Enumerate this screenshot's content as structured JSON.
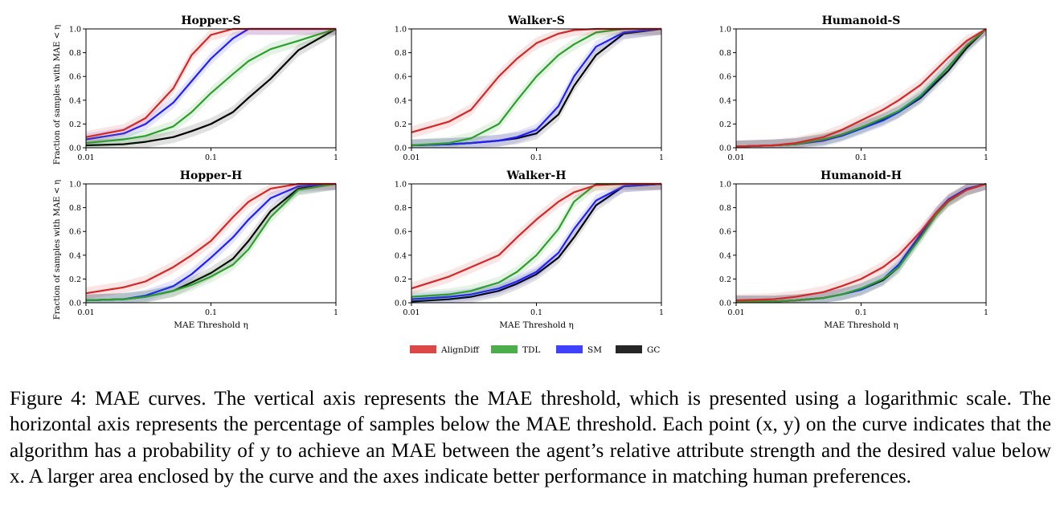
{
  "figure": {
    "x_axis_label": "MAE Threshold η",
    "y_axis_label": "Fraction of samples with MAE < η",
    "legend": [
      {
        "label": "AlignDiff",
        "color": "#d62728"
      },
      {
        "label": "TDL",
        "color": "#2ca02c"
      },
      {
        "label": "SM",
        "color": "#1f1fff"
      },
      {
        "label": "GC",
        "color": "#000000"
      }
    ],
    "caption": "Figure 4: MAE curves. The vertical axis represents the MAE threshold, which is presented using a logarithmic scale. The horizontal axis represents the percentage of samples below the MAE threshold. Each point (x, y) on the curve indicates that the algorithm has a probability of y to achieve an MAE between the agent’s relative attribute strength and the desired value below x. A larger area enclosed by the curve and the axes indicate better performance in matching human preferences."
  },
  "chart_data": [
    {
      "type": "line",
      "title": "Hopper-S",
      "xscale": "log",
      "xlim": [
        0.01,
        1
      ],
      "ylim": [
        0,
        1
      ],
      "xticks": [
        "0.01",
        "0.1",
        "1"
      ],
      "yticks": [
        "0.0",
        "0.2",
        "0.4",
        "0.6",
        "0.8",
        "1.0"
      ],
      "x": [
        0.01,
        0.02,
        0.03,
        0.05,
        0.07,
        0.1,
        0.15,
        0.2,
        0.3,
        0.5,
        1.0
      ],
      "series": [
        {
          "name": "AlignDiff",
          "values": [
            0.09,
            0.15,
            0.25,
            0.5,
            0.78,
            0.95,
            1.0,
            1.0,
            1.0,
            1.0,
            1.0
          ]
        },
        {
          "name": "TDL",
          "values": [
            0.04,
            0.07,
            0.1,
            0.18,
            0.3,
            0.46,
            0.62,
            0.73,
            0.83,
            0.9,
            1.0
          ]
        },
        {
          "name": "SM",
          "values": [
            0.07,
            0.12,
            0.2,
            0.38,
            0.56,
            0.75,
            0.92,
            1.0,
            1.0,
            1.0,
            1.0
          ]
        },
        {
          "name": "GC",
          "values": [
            0.02,
            0.03,
            0.05,
            0.09,
            0.14,
            0.2,
            0.3,
            0.42,
            0.58,
            0.82,
            1.0
          ]
        }
      ]
    },
    {
      "type": "line",
      "title": "Walker-S",
      "xscale": "log",
      "xlim": [
        0.01,
        1
      ],
      "ylim": [
        0,
        1
      ],
      "xticks": [
        "0.01",
        "0.1",
        "1"
      ],
      "yticks": [
        "0.0",
        "0.2",
        "0.4",
        "0.6",
        "0.8",
        "1.0"
      ],
      "x": [
        0.01,
        0.02,
        0.03,
        0.05,
        0.07,
        0.1,
        0.15,
        0.2,
        0.3,
        0.5,
        1.0
      ],
      "series": [
        {
          "name": "AlignDiff",
          "values": [
            0.13,
            0.22,
            0.32,
            0.6,
            0.75,
            0.88,
            0.96,
            0.99,
            1.0,
            1.0,
            1.0
          ]
        },
        {
          "name": "TDL",
          "values": [
            0.02,
            0.04,
            0.08,
            0.2,
            0.4,
            0.6,
            0.78,
            0.87,
            0.97,
            1.0,
            1.0
          ]
        },
        {
          "name": "SM",
          "values": [
            0.02,
            0.03,
            0.04,
            0.06,
            0.09,
            0.15,
            0.35,
            0.6,
            0.85,
            0.97,
            1.0
          ]
        },
        {
          "name": "GC",
          "values": [
            0.02,
            0.03,
            0.04,
            0.06,
            0.08,
            0.12,
            0.28,
            0.52,
            0.78,
            0.96,
            1.0
          ]
        }
      ]
    },
    {
      "type": "line",
      "title": "Humanoid-S",
      "xscale": "log",
      "xlim": [
        0.01,
        1
      ],
      "ylim": [
        0,
        1
      ],
      "xticks": [
        "0.01",
        "0.1",
        "1"
      ],
      "yticks": [
        "0.0",
        "0.2",
        "0.4",
        "0.6",
        "0.8",
        "1.0"
      ],
      "x": [
        0.01,
        0.02,
        0.03,
        0.05,
        0.07,
        0.1,
        0.15,
        0.2,
        0.3,
        0.5,
        0.7,
        1.0
      ],
      "series": [
        {
          "name": "AlignDiff",
          "values": [
            0.01,
            0.02,
            0.04,
            0.09,
            0.15,
            0.23,
            0.32,
            0.4,
            0.53,
            0.76,
            0.9,
            1.0
          ]
        },
        {
          "name": "TDL",
          "values": [
            0.01,
            0.02,
            0.03,
            0.07,
            0.11,
            0.17,
            0.25,
            0.31,
            0.44,
            0.68,
            0.86,
            1.0
          ]
        },
        {
          "name": "SM",
          "values": [
            0.01,
            0.02,
            0.03,
            0.06,
            0.1,
            0.16,
            0.23,
            0.3,
            0.43,
            0.68,
            0.86,
            1.0
          ]
        },
        {
          "name": "GC",
          "values": [
            0.01,
            0.02,
            0.03,
            0.07,
            0.11,
            0.17,
            0.24,
            0.3,
            0.42,
            0.65,
            0.84,
            1.0
          ]
        }
      ]
    },
    {
      "type": "line",
      "title": "Hopper-H",
      "xscale": "log",
      "xlim": [
        0.01,
        1
      ],
      "ylim": [
        0,
        1
      ],
      "xticks": [
        "0.01",
        "0.1",
        "1"
      ],
      "yticks": [
        "0.0",
        "0.2",
        "0.4",
        "0.6",
        "0.8",
        "1.0"
      ],
      "x": [
        0.01,
        0.02,
        0.03,
        0.05,
        0.07,
        0.1,
        0.15,
        0.2,
        0.3,
        0.5,
        1.0
      ],
      "series": [
        {
          "name": "AlignDiff",
          "values": [
            0.08,
            0.13,
            0.18,
            0.3,
            0.4,
            0.52,
            0.72,
            0.85,
            0.96,
            1.0,
            1.0
          ]
        },
        {
          "name": "TDL",
          "values": [
            0.02,
            0.03,
            0.05,
            0.1,
            0.15,
            0.22,
            0.32,
            0.45,
            0.72,
            0.95,
            1.0
          ]
        },
        {
          "name": "SM",
          "values": [
            0.02,
            0.03,
            0.06,
            0.14,
            0.24,
            0.38,
            0.55,
            0.7,
            0.88,
            0.98,
            1.0
          ]
        },
        {
          "name": "GC",
          "values": [
            0.02,
            0.03,
            0.05,
            0.1,
            0.17,
            0.25,
            0.37,
            0.52,
            0.77,
            0.96,
            1.0
          ]
        }
      ]
    },
    {
      "type": "line",
      "title": "Walker-H",
      "xscale": "log",
      "xlim": [
        0.01,
        1
      ],
      "ylim": [
        0,
        1
      ],
      "xticks": [
        "0.01",
        "0.1",
        "1"
      ],
      "yticks": [
        "0.0",
        "0.2",
        "0.4",
        "0.6",
        "0.8",
        "1.0"
      ],
      "x": [
        0.01,
        0.02,
        0.03,
        0.05,
        0.07,
        0.1,
        0.15,
        0.2,
        0.3,
        0.5,
        1.0
      ],
      "series": [
        {
          "name": "AlignDiff",
          "values": [
            0.12,
            0.22,
            0.3,
            0.4,
            0.55,
            0.7,
            0.85,
            0.93,
            0.99,
            1.0,
            1.0
          ]
        },
        {
          "name": "TDL",
          "values": [
            0.05,
            0.07,
            0.1,
            0.17,
            0.26,
            0.4,
            0.62,
            0.85,
            1.0,
            1.0,
            1.0
          ]
        },
        {
          "name": "SM",
          "values": [
            0.03,
            0.05,
            0.07,
            0.12,
            0.18,
            0.26,
            0.42,
            0.62,
            0.86,
            0.98,
            1.0
          ]
        },
        {
          "name": "GC",
          "values": [
            0.01,
            0.03,
            0.05,
            0.1,
            0.16,
            0.24,
            0.38,
            0.55,
            0.82,
            0.98,
            1.0
          ]
        }
      ]
    },
    {
      "type": "line",
      "title": "Humanoid-H",
      "xscale": "log",
      "xlim": [
        0.01,
        1
      ],
      "ylim": [
        0,
        1
      ],
      "xticks": [
        "0.01",
        "0.1",
        "1"
      ],
      "yticks": [
        "0.0",
        "0.2",
        "0.4",
        "0.6",
        "0.8",
        "1.0"
      ],
      "x": [
        0.01,
        0.02,
        0.03,
        0.05,
        0.07,
        0.1,
        0.15,
        0.2,
        0.3,
        0.4,
        0.5,
        0.7,
        1.0
      ],
      "series": [
        {
          "name": "AlignDiff",
          "values": [
            0.02,
            0.03,
            0.05,
            0.09,
            0.14,
            0.2,
            0.3,
            0.4,
            0.6,
            0.76,
            0.86,
            0.95,
            1.0
          ]
        },
        {
          "name": "TDL",
          "values": [
            0.01,
            0.01,
            0.02,
            0.04,
            0.07,
            0.12,
            0.2,
            0.3,
            0.55,
            0.74,
            0.85,
            0.95,
            1.0
          ]
        },
        {
          "name": "SM",
          "values": [
            0.01,
            0.01,
            0.02,
            0.04,
            0.07,
            0.11,
            0.2,
            0.32,
            0.58,
            0.76,
            0.87,
            0.96,
            1.0
          ]
        },
        {
          "name": "GC",
          "values": [
            0.01,
            0.01,
            0.02,
            0.04,
            0.07,
            0.11,
            0.19,
            0.3,
            0.56,
            0.75,
            0.86,
            0.95,
            1.0
          ]
        }
      ]
    }
  ]
}
